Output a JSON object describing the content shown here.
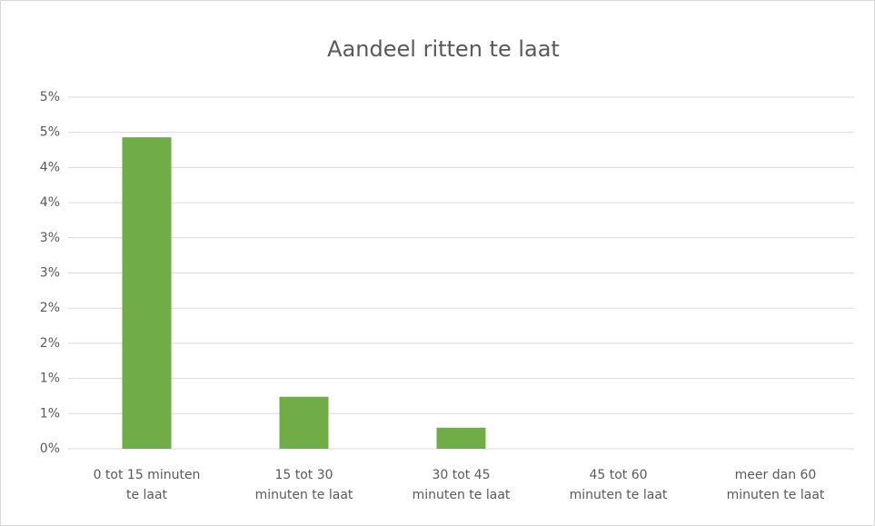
{
  "chart_data": {
    "type": "bar",
    "title": "Aandeel ritten te laat",
    "categories": [
      "0 tot 15 minuten\nte laat",
      "15 tot 30\nminuten te laat",
      "30 tot 45\nminuten te laat",
      "45 tot 60\nminuten te laat",
      "meer dan 60\nminuten te laat"
    ],
    "values": [
      4.43,
      0.74,
      0.3,
      0,
      0
    ],
    "color": "#70ad47",
    "ylim": [
      0,
      5
    ],
    "yticks": [
      {
        "value": 0,
        "label": "0%"
      },
      {
        "value": 0.5,
        "label": "1%"
      },
      {
        "value": 1,
        "label": "1%"
      },
      {
        "value": 1.5,
        "label": "2%"
      },
      {
        "value": 2,
        "label": "2%"
      },
      {
        "value": 2.5,
        "label": "3%"
      },
      {
        "value": 3,
        "label": "3%"
      },
      {
        "value": 3.5,
        "label": "4%"
      },
      {
        "value": 4,
        "label": "4%"
      },
      {
        "value": 4.5,
        "label": "5%"
      },
      {
        "value": 5,
        "label": "5%"
      }
    ],
    "grid": true
  }
}
